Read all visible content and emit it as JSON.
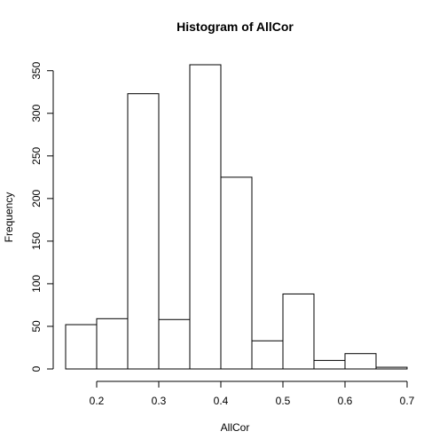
{
  "chart_data": {
    "type": "bar",
    "title": "Histogram of AllCor",
    "xlabel": "AllCor",
    "ylabel": "Frequency",
    "bins": [
      {
        "start": 0.15,
        "end": 0.2,
        "count": 52
      },
      {
        "start": 0.2,
        "end": 0.25,
        "count": 59
      },
      {
        "start": 0.25,
        "end": 0.3,
        "count": 323
      },
      {
        "start": 0.3,
        "end": 0.35,
        "count": 58
      },
      {
        "start": 0.35,
        "end": 0.4,
        "count": 357
      },
      {
        "start": 0.4,
        "end": 0.45,
        "count": 225
      },
      {
        "start": 0.45,
        "end": 0.5,
        "count": 33
      },
      {
        "start": 0.5,
        "end": 0.55,
        "count": 88
      },
      {
        "start": 0.55,
        "end": 0.6,
        "count": 10
      },
      {
        "start": 0.6,
        "end": 0.65,
        "count": 18
      },
      {
        "start": 0.65,
        "end": 0.7,
        "count": 2
      }
    ],
    "xlim": [
      0.15,
      0.7
    ],
    "ylim": [
      0,
      357
    ],
    "x_ticks": [
      0.2,
      0.3,
      0.4,
      0.5,
      0.6,
      0.7
    ],
    "x_tick_labels": [
      "0.2",
      "0.3",
      "0.4",
      "0.5",
      "0.6",
      "0.7"
    ],
    "y_ticks": [
      0,
      50,
      100,
      150,
      200,
      250,
      300,
      350
    ],
    "y_tick_labels": [
      "0",
      "50",
      "100",
      "150",
      "200",
      "250",
      "300",
      "350"
    ],
    "grid": false,
    "legend": "none"
  }
}
